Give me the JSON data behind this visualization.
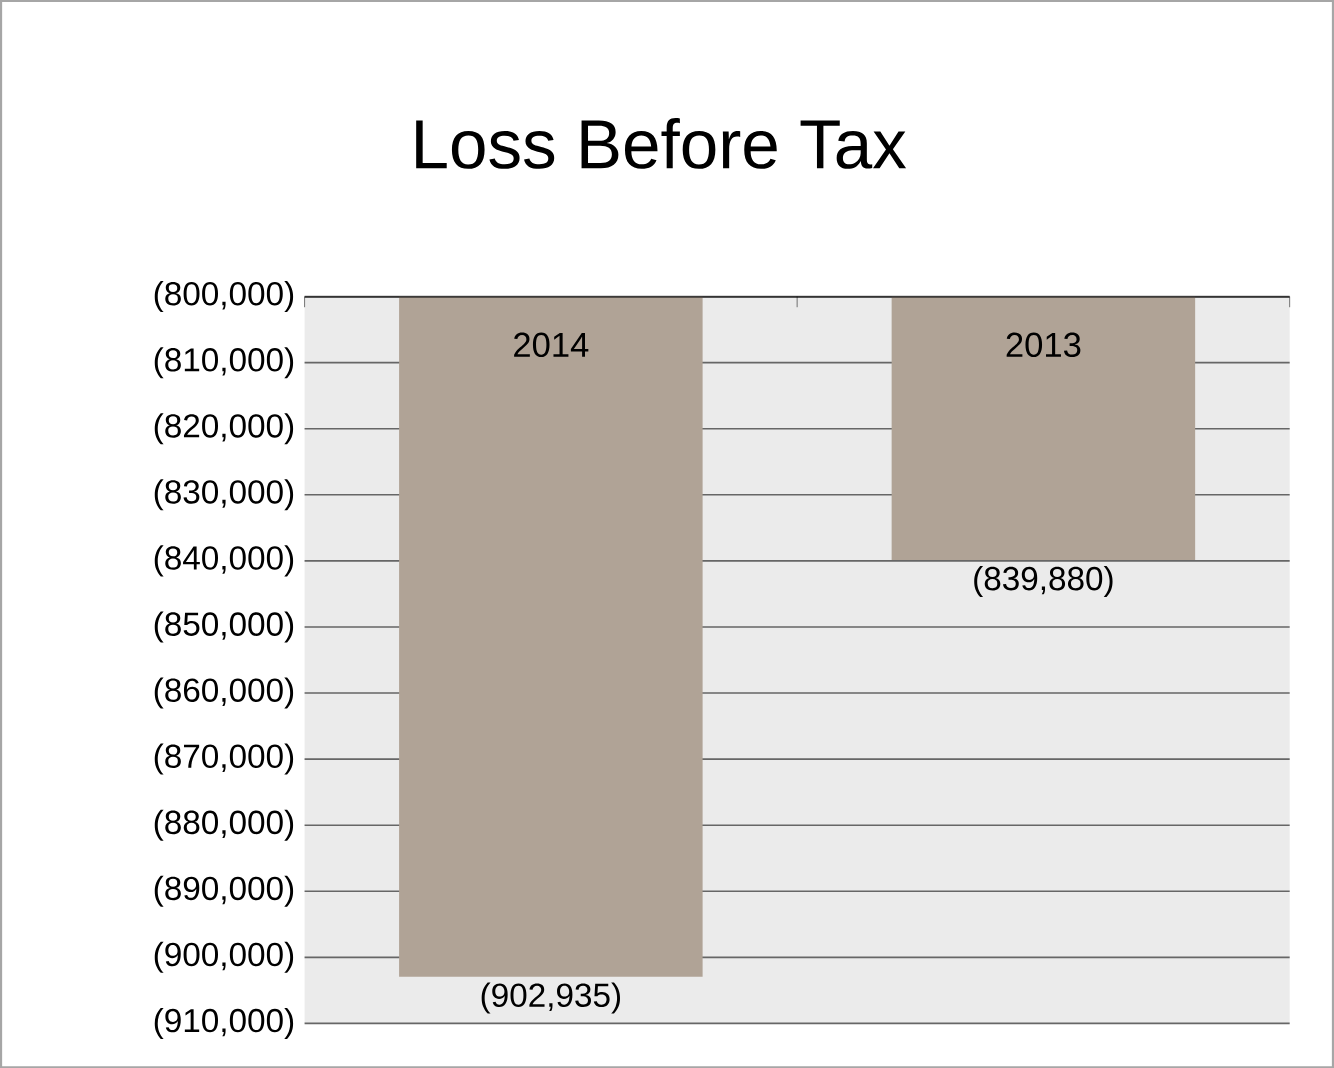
{
  "chart_data": {
    "type": "bar",
    "title": "Loss Before Tax",
    "categories": [
      "2014",
      "2013"
    ],
    "values": [
      -902935,
      -839880
    ],
    "value_labels": [
      "(902,935)",
      "(839,880)"
    ],
    "color": "#b0a396",
    "ylim": [
      -910000,
      -800000
    ],
    "yticks": [
      {
        "value": -800000,
        "label": "(800,000)"
      },
      {
        "value": -810000,
        "label": "(810,000)"
      },
      {
        "value": -820000,
        "label": "(820,000)"
      },
      {
        "value": -830000,
        "label": "(830,000)"
      },
      {
        "value": -840000,
        "label": "(840,000)"
      },
      {
        "value": -850000,
        "label": "(850,000)"
      },
      {
        "value": -860000,
        "label": "(860,000)"
      },
      {
        "value": -870000,
        "label": "(870,000)"
      },
      {
        "value": -880000,
        "label": "(880,000)"
      },
      {
        "value": -890000,
        "label": "(890,000)"
      },
      {
        "value": -900000,
        "label": "(900,000)"
      },
      {
        "value": -910000,
        "label": "(910,000)"
      }
    ],
    "grid": "y"
  }
}
